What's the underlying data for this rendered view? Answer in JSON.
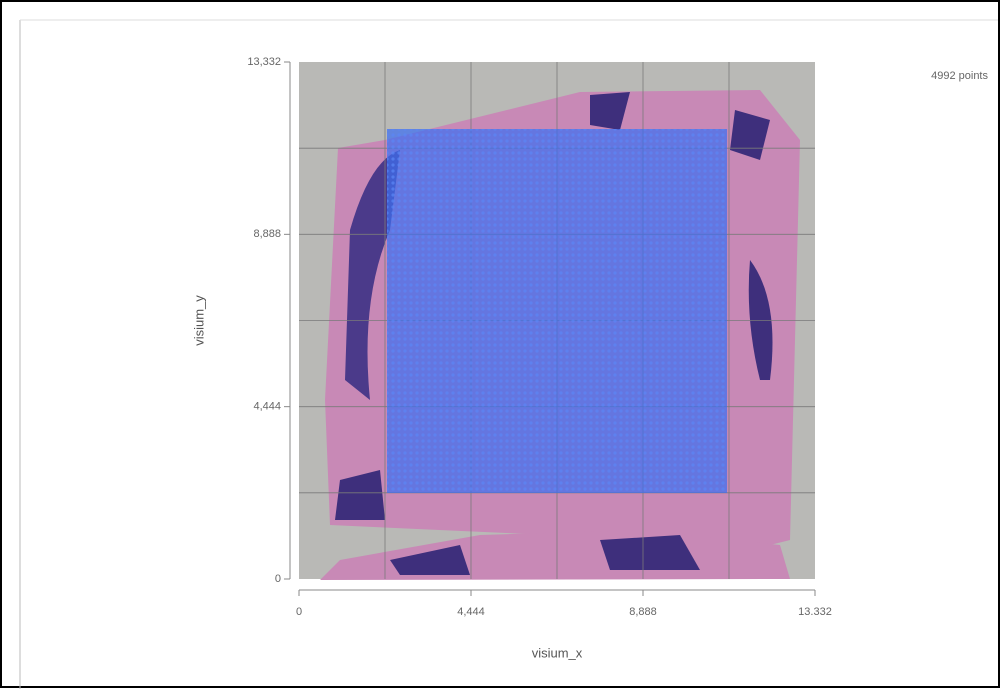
{
  "chart_data": {
    "type": "spatial-selection",
    "points_label": "4992 points",
    "x_label": "visium_x",
    "y_label": "visium_y",
    "xlim": [
      0,
      13332
    ],
    "ylim": [
      0,
      13332
    ],
    "xticks": [
      0,
      {
        "value": 4444,
        "label": "4,444"
      },
      {
        "value": 8888,
        "label": "8,888"
      },
      {
        "value": 13332,
        "label": "13.332"
      }
    ],
    "yticks": [
      0,
      {
        "value": 4444,
        "label": "4,444"
      },
      {
        "value": 8888,
        "label": "8,888"
      },
      {
        "value": 13332,
        "label": "13,332"
      }
    ],
    "xgrid": [
      2222,
      4444,
      6666,
      8888,
      11110
    ],
    "ygrid": [
      2222,
      4444,
      6666,
      8888,
      11110
    ],
    "selection": {
      "x": [
        2274,
        11059
      ],
      "y": [
        2218,
        11604
      ],
      "color": "#3d6ff0"
    }
  }
}
